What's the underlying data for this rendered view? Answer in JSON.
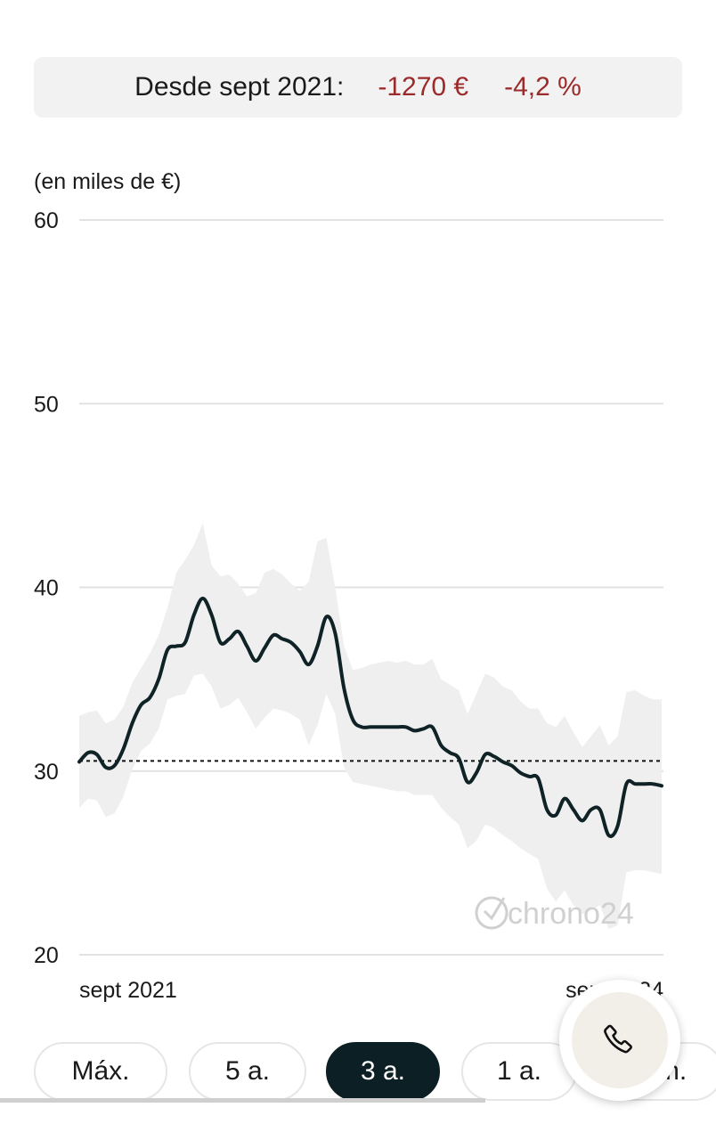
{
  "summary": {
    "label": "Desde sept 2021:",
    "change_abs": "-1270 €",
    "change_pct": "-4,2 %",
    "negative_color": "#9b2a2a"
  },
  "chart_data": {
    "type": "line",
    "unit_label": "(en miles de €)",
    "xlabel": "",
    "ylabel": "",
    "ylim": [
      20,
      60
    ],
    "y_ticks": [
      "60",
      "50",
      "40",
      "30",
      "20"
    ],
    "x_tick_labels": [
      "sept 2021",
      "sept 2024"
    ],
    "reference_line": 30.55,
    "grid": true,
    "watermark": "chrono24",
    "series": [
      {
        "values": [
          30.5,
          31.0,
          30.9,
          30.2,
          30.3,
          31.2,
          32.6,
          33.6,
          34.0,
          35.0,
          36.6,
          36.8,
          37.0,
          38.5,
          39.4,
          38.5,
          37.0,
          37.2,
          37.6,
          36.8,
          36.0,
          36.7,
          37.4,
          37.2,
          37.0,
          36.5,
          35.8,
          36.8,
          38.4,
          37.5,
          34.5,
          32.8,
          32.4,
          32.4,
          32.4,
          32.4,
          32.4,
          32.4,
          32.2,
          32.3,
          32.4,
          31.4,
          31.0,
          30.7,
          29.4,
          29.9,
          30.9,
          30.8,
          30.5,
          30.3,
          29.9,
          29.7,
          29.6,
          27.9,
          27.6,
          28.5,
          27.9,
          27.3,
          27.9,
          27.9,
          26.5,
          27.0,
          29.3,
          29.3,
          29.3,
          29.3,
          29.2
        ],
        "upper": [
          33.0,
          33.2,
          33.3,
          32.6,
          32.8,
          33.5,
          34.8,
          35.6,
          36.4,
          37.4,
          38.9,
          40.8,
          41.5,
          42.3,
          43.5,
          41.2,
          40.6,
          40.7,
          40.2,
          39.5,
          39.7,
          40.8,
          41.0,
          40.7,
          40.2,
          39.8,
          40.3,
          42.5,
          42.7,
          40.0,
          36.8,
          35.5,
          35.6,
          35.8,
          35.9,
          36.0,
          35.9,
          36.0,
          35.8,
          35.8,
          36.1,
          35.0,
          34.7,
          34.4,
          33.1,
          34.2,
          35.3,
          35.1,
          34.6,
          34.4,
          33.8,
          33.4,
          33.4,
          32.6,
          32.4,
          33.0,
          32.1,
          31.3,
          31.9,
          32.5,
          31.4,
          31.9,
          34.3,
          34.4,
          34.1,
          33.9,
          33.9
        ],
        "lower": [
          28.0,
          28.5,
          28.4,
          27.5,
          27.7,
          28.6,
          30.1,
          31.1,
          31.5,
          32.3,
          33.9,
          34.1,
          34.2,
          35.2,
          35.3,
          34.6,
          33.4,
          33.6,
          34.0,
          33.2,
          32.3,
          32.9,
          33.4,
          33.3,
          33.1,
          32.8,
          31.4,
          32.5,
          34.2,
          33.1,
          30.2,
          29.4,
          29.3,
          29.2,
          29.1,
          29.0,
          28.9,
          28.9,
          28.7,
          28.7,
          28.7,
          28.0,
          27.5,
          27.1,
          25.8,
          26.2,
          27.1,
          26.9,
          26.5,
          26.2,
          25.8,
          25.5,
          25.2,
          23.6,
          22.9,
          23.5,
          22.7,
          22.2,
          22.4,
          22.7,
          21.4,
          21.6,
          24.5,
          24.6,
          24.6,
          24.5,
          24.4
        ]
      }
    ],
    "colors": {
      "line": "#0f2226",
      "band": "#efefef",
      "grid": "#e2e2e2"
    }
  },
  "tabs": [
    {
      "label": "Máx.",
      "active": false
    },
    {
      "label": "5 a.",
      "active": false
    },
    {
      "label": "3 a.",
      "active": true
    },
    {
      "label": "1 a.",
      "active": false
    },
    {
      "label": "6 m.",
      "active": false
    }
  ],
  "call_button": {
    "icon": "phone-icon"
  }
}
